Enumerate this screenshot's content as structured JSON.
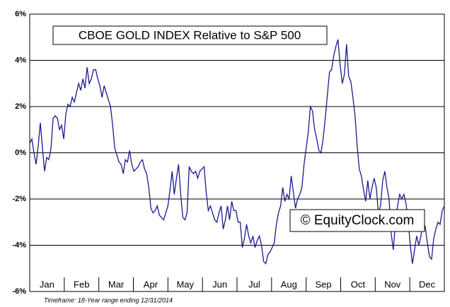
{
  "chart_data": {
    "type": "line",
    "title": "CBOE GOLD INDEX Relative to S&P 500",
    "watermark": "© EquityClock.com",
    "footnote": "Timeframe: 18-Year range ending 12/31/2014",
    "month_labels": [
      "Jan",
      "Feb",
      "Mar",
      "Apr",
      "May",
      "Jun",
      "Jul",
      "Aug",
      "Sep",
      "Oct",
      "Nov",
      "Dec"
    ],
    "ylim": [
      -6,
      6
    ],
    "yticks": [
      {
        "value": -6,
        "label": "-6%"
      },
      {
        "value": -4,
        "label": "-4%"
      },
      {
        "value": -2,
        "label": "-2%"
      },
      {
        "value": 0,
        "label": "0%"
      },
      {
        "value": 2,
        "label": "2%"
      },
      {
        "value": 4,
        "label": "4%"
      },
      {
        "value": 6,
        "label": "6%"
      }
    ],
    "grid": true,
    "series": [
      {
        "color": "#1a1a8c",
        "values": [
          0.4,
          0.6,
          0.0,
          -0.5,
          0.3,
          1.3,
          0.2,
          -0.8,
          -0.2,
          -0.3,
          0.2,
          1.5,
          1.6,
          1.5,
          1.0,
          1.2,
          0.6,
          1.7,
          2.1,
          2.0,
          2.4,
          2.2,
          2.6,
          3.0,
          2.7,
          3.2,
          2.8,
          3.7,
          3.0,
          3.2,
          3.6,
          3.6,
          3.2,
          2.9,
          2.4,
          2.9,
          2.6,
          2.3,
          2.0,
          1.2,
          0.2,
          -0.1,
          -0.4,
          -0.5,
          -0.9,
          -0.3,
          -0.4,
          0.1,
          -0.5,
          -0.8,
          -0.7,
          -0.6,
          -0.4,
          -0.3,
          -0.7,
          -0.9,
          -1.5,
          -2.4,
          -2.6,
          -2.5,
          -2.3,
          -2.7,
          -2.8,
          -2.9,
          -2.6,
          -2.3,
          -1.6,
          -0.8,
          -1.8,
          -1.1,
          -0.5,
          -1.8,
          -2.8,
          -2.9,
          -2.6,
          -0.6,
          -0.8,
          -0.9,
          -0.8,
          -1.1,
          -0.8,
          -0.7,
          -0.6,
          -1.7,
          -2.5,
          -2.3,
          -2.6,
          -2.9,
          -3.0,
          -2.6,
          -2.3,
          -3.3,
          -2.9,
          -2.3,
          -2.9,
          -2.1,
          -2.5,
          -2.5,
          -3.0,
          -3.0,
          -4.1,
          -3.7,
          -3.1,
          -3.6,
          -3.9,
          -3.6,
          -4.1,
          -3.8,
          -3.6,
          -4.0,
          -4.7,
          -4.8,
          -4.4,
          -4.3,
          -4.1,
          -3.9,
          -3.1,
          -2.6,
          -2.3,
          -1.5,
          -2.1,
          -1.8,
          -2.0,
          -1.0,
          -1.7,
          -2.4,
          -2.0,
          -1.8,
          -1.5,
          -0.5,
          0.2,
          0.9,
          2.0,
          1.8,
          1.0,
          0.6,
          0.1,
          0.0,
          0.6,
          1.5,
          2.5,
          3.5,
          3.6,
          4.2,
          4.6,
          4.9,
          3.8,
          3.0,
          3.4,
          4.7,
          3.3,
          3.1,
          2.4,
          1.6,
          0.3,
          -0.7,
          -1.0,
          -1.6,
          -2.1,
          -1.2,
          -2.0,
          -1.5,
          -1.1,
          -1.5,
          -2.6,
          -2.3,
          -1.2,
          -0.8,
          -1.5,
          -2.0,
          -3.5,
          -4.2,
          -3.0,
          -2.3,
          -1.8,
          -2.0,
          -1.8,
          -2.2,
          -3.0,
          -4.0,
          -4.8,
          -4.2,
          -3.6,
          -4.0,
          -3.6,
          -3.0,
          -3.2,
          -3.9,
          -4.5,
          -4.6,
          -3.7,
          -3.3,
          -3.0,
          -3.1,
          -2.5,
          -2.3
        ]
      }
    ]
  }
}
